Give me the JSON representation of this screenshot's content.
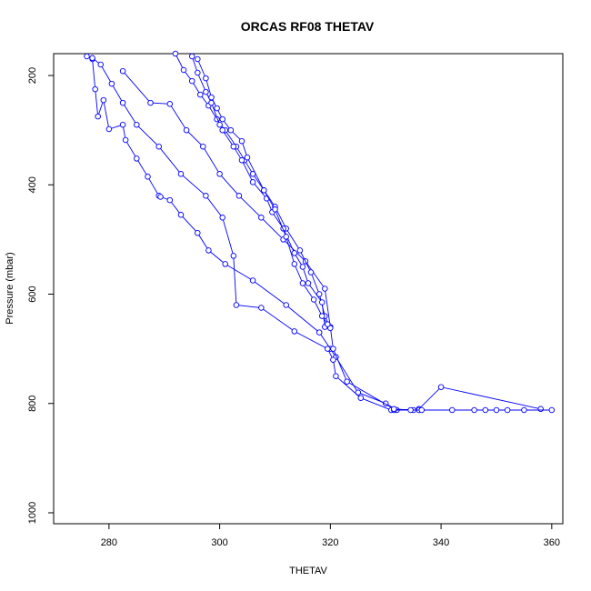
{
  "colors": {
    "series": "#0000ff",
    "axes": "#000000",
    "background": "#ffffff"
  },
  "chart_data": {
    "type": "line",
    "title": "ORCAS RF08 THETAV",
    "xlabel": "THETAV",
    "ylabel": "Pressure (mbar)",
    "xlim": [
      270,
      362
    ],
    "ylim": [
      1020,
      160
    ],
    "y_reversed": true,
    "grid": false,
    "legend": "none",
    "markers": "open-circle",
    "xticks": [
      280,
      300,
      320,
      340,
      360
    ],
    "yticks": [
      200,
      400,
      600,
      800,
      1000
    ],
    "series": [
      {
        "x": [
          276,
          277,
          277.5,
          278,
          279,
          280,
          282.5,
          283,
          285,
          287,
          289,
          289.3,
          291,
          293,
          296,
          298,
          301,
          306,
          312,
          318,
          320,
          321,
          325,
          330,
          332,
          336,
          340,
          358
        ],
        "y": [
          165,
          170,
          225,
          275,
          245,
          298,
          290,
          318,
          352,
          385,
          420,
          422,
          428,
          455,
          488,
          520,
          545,
          575,
          620,
          670,
          700,
          715,
          780,
          800,
          812,
          810,
          770,
          810
        ]
      },
      {
        "x": [
          277,
          278.5,
          280.5,
          282.5,
          285,
          289,
          293,
          297.5,
          300.5,
          302.5,
          303,
          307.5,
          313.5,
          319.5,
          320.5,
          321,
          325.5,
          331,
          331.5,
          335,
          336,
          342,
          346,
          348,
          350,
          352,
          355,
          360
        ],
        "y": [
          168,
          180,
          215,
          250,
          290,
          330,
          380,
          420,
          460,
          530,
          620,
          625,
          668,
          700,
          720,
          750,
          790,
          812,
          812,
          812,
          812,
          812,
          812,
          812,
          812,
          812,
          812,
          812
        ]
      },
      {
        "x": [
          282.5,
          287.5,
          291,
          294,
          297,
          300,
          303.5,
          307.5,
          311.5,
          315.5,
          319,
          320,
          320.5,
          323,
          331.5,
          334.5,
          336.5
        ],
        "y": [
          192,
          250,
          252,
          300,
          330,
          380,
          420,
          460,
          500,
          540,
          590,
          660,
          700,
          760,
          810,
          812,
          812
        ]
      },
      {
        "x": [
          292,
          293.5,
          295,
          296.5,
          298,
          299.5,
          301,
          303,
          304.5,
          306,
          308,
          310,
          312,
          314.5,
          316.5,
          318,
          319,
          320
        ],
        "y": [
          160,
          190,
          210,
          235,
          255,
          280,
          300,
          330,
          355,
          380,
          410,
          440,
          480,
          520,
          560,
          600,
          640,
          662
        ]
      },
      {
        "x": [
          295,
          296,
          297.5,
          298.5,
          300,
          300.5,
          302.5,
          304,
          306,
          308.5,
          309.5,
          311.5,
          313.5,
          315,
          316,
          318.5,
          319
        ],
        "y": [
          165,
          195,
          230,
          250,
          290,
          300,
          330,
          355,
          395,
          425,
          450,
          480,
          525,
          550,
          580,
          615,
          660
        ]
      },
      {
        "x": [
          296,
          297.5,
          298.5,
          299.5,
          300.5,
          302,
          304,
          305,
          308,
          310,
          312,
          313.5,
          315,
          317,
          318.5,
          319.5
        ],
        "y": [
          170,
          205,
          240,
          260,
          280,
          300,
          320,
          350,
          410,
          445,
          495,
          545,
          580,
          610,
          640,
          655
        ]
      }
    ]
  }
}
